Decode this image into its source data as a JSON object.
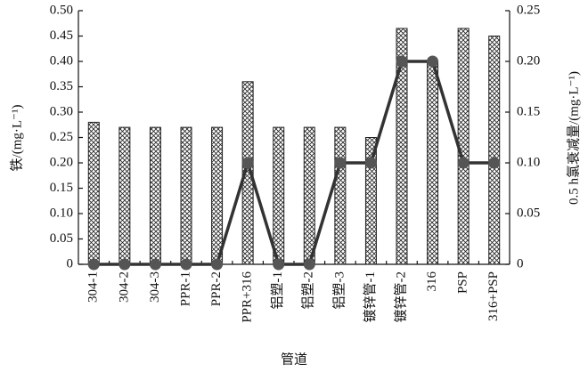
{
  "chart_data": {
    "type": "bar",
    "x_label": "管道",
    "y_label": "铁/(mg·L⁻¹)",
    "y2_label": "0.5 h氯衰减量/(mg·L⁻¹)",
    "categories": [
      "304-1",
      "304-2",
      "304-3",
      "PPR-1",
      "PPR-2",
      "PPR+316",
      "铝塑-1",
      "铝塑-2",
      "铝塑-3",
      "镀锌管-1",
      "镀锌管-2",
      "316",
      "PSP",
      "316+PSP"
    ],
    "series": [
      {
        "type": "bar",
        "color": "#222222",
        "values": [
          0.28,
          0.27,
          0.27,
          0.27,
          0.27,
          0.36,
          0.27,
          0.27,
          0.27,
          0.25,
          0.465,
          0.4,
          0.465,
          0.45
        ]
      },
      {
        "type": "line",
        "axis": "y2",
        "color": "#333333",
        "values": [
          0,
          0,
          0,
          0,
          0,
          0.1,
          0,
          0,
          0.1,
          0.1,
          0.2,
          0.2,
          0.1,
          0.1
        ]
      }
    ],
    "ylim": [
      0,
      0.5
    ],
    "yticks": [
      0,
      0.05,
      {
        "value": 0.1,
        "label": "0.10"
      },
      0.15,
      {
        "value": 0.2,
        "label": "0.20"
      },
      0.25,
      {
        "value": 0.3,
        "label": "0.30"
      },
      0.35,
      {
        "value": 0.4,
        "label": "0.40"
      },
      0.45,
      {
        "value": 0.5,
        "label": "0.50"
      }
    ],
    "y2lim": [
      0,
      0.25
    ],
    "y2ticks": [
      0,
      0.05,
      {
        "value": 0.1,
        "label": "0.10"
      },
      0.15,
      {
        "value": 0.2,
        "label": "0.20"
      },
      0.25
    ],
    "grid": false
  }
}
